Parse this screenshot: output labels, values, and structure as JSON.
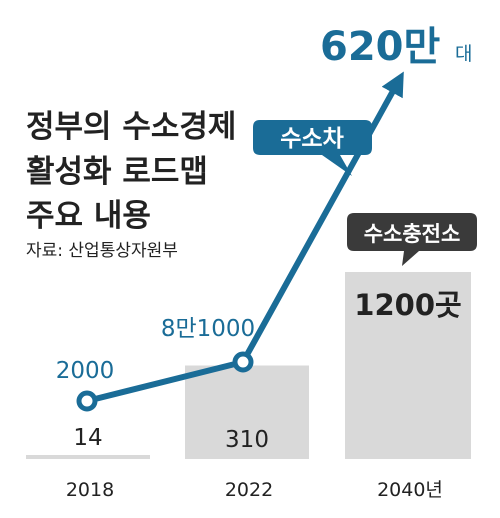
{
  "chart_data": {
    "type": "line",
    "title": [
      "정부의 수소경제",
      "활성화 로드맵",
      "주요 내용"
    ],
    "source": "자료: 산업통상자원부",
    "categories": [
      "2018",
      "2022",
      "2040년"
    ],
    "series": [
      {
        "name": "수소차",
        "values": [
          2000,
          81000,
          6200000
        ],
        "labels": [
          "2000",
          "8만1000",
          "620만"
        ],
        "last_label_suffix": "대",
        "color": "#1a6c97"
      },
      {
        "name": "수소충전소",
        "type": "bar",
        "values": [
          14,
          310,
          1200
        ],
        "labels": [
          "14",
          "310",
          "1200곳"
        ],
        "color": "#d9d9d9"
      }
    ]
  }
}
